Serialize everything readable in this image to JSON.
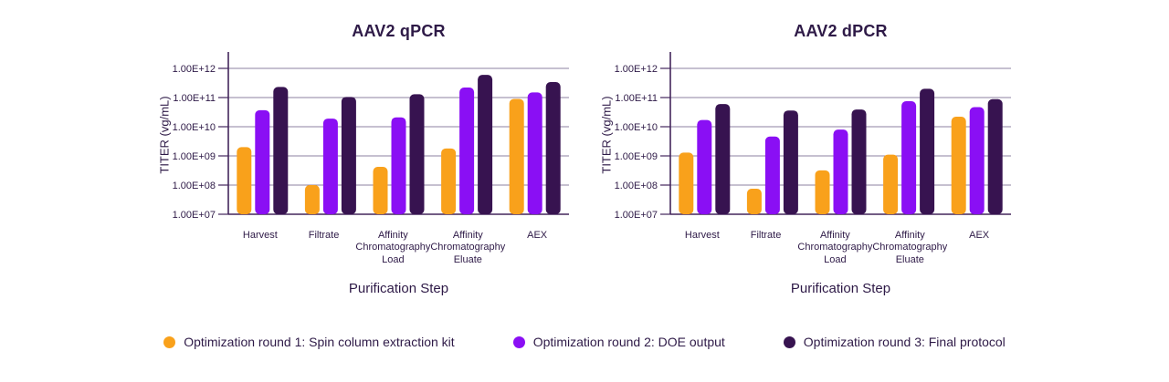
{
  "figure": {
    "x_axis_title": "Purification Step",
    "colors": {
      "text": "#2E1A47",
      "grid": "#8E82A0",
      "axis": "#43265C",
      "round1": "#F9A11B",
      "round2": "#8A0FF4",
      "round3": "#371350"
    }
  },
  "chart_data": [
    {
      "type": "bar",
      "title": "AAV2 qPCR",
      "xlabel": "Purification Step",
      "ylabel": "TITER (vg/mL)",
      "yscale": "log",
      "ylim": [
        10000000.0,
        1000000000000.0
      ],
      "grid": true,
      "ytick_labels": [
        "1.00E+12",
        "1.00E+11",
        "1.00E+10",
        "1.00E+09",
        "1.00E+08",
        "1.00E+07"
      ],
      "categories": [
        "Harvest",
        "Filtrate",
        "Affinity\nChromatography\nLoad",
        "Affinity\nChromatography\nEluate",
        "AEX"
      ],
      "series": [
        {
          "name": "Optimization round 1: Spin column extraction kit",
          "color": "#F9A11B",
          "values": [
            2000000000.0,
            100000000.0,
            420000000.0,
            1800000000.0,
            90000000000.0
          ]
        },
        {
          "name": "Optimization round 2: DOE output",
          "color": "#8A0FF4",
          "values": [
            37000000000.0,
            19000000000.0,
            21000000000.0,
            220000000000.0,
            150000000000.0
          ]
        },
        {
          "name": "Optimization round 3: Final protocol",
          "color": "#371350",
          "values": [
            230000000000.0,
            105000000000.0,
            130000000000.0,
            600000000000.0,
            340000000000.0
          ]
        }
      ]
    },
    {
      "type": "bar",
      "title": "AAV2 dPCR",
      "xlabel": "Purification Step",
      "ylabel": "TITER (vg/mL)",
      "yscale": "log",
      "ylim": [
        10000000.0,
        1000000000000.0
      ],
      "grid": true,
      "ytick_labels": [
        "1.00E+12",
        "1.00E+11",
        "1.00E+10",
        "1.00E+09",
        "1.00E+08",
        "1.00E+07"
      ],
      "categories": [
        "Harvest",
        "Filtrate",
        "Affinity\nChromatography\nLoad",
        "Affinity\nChromatography\nEluate",
        "AEX"
      ],
      "series": [
        {
          "name": "Optimization round 1: Spin column extraction kit",
          "color": "#F9A11B",
          "values": [
            1300000000.0,
            75000000.0,
            320000000.0,
            1100000000.0,
            22000000000.0
          ]
        },
        {
          "name": "Optimization round 2: DOE output",
          "color": "#8A0FF4",
          "values": [
            17000000000.0,
            4600000000.0,
            8000000000.0,
            75000000000.0,
            47000000000.0
          ]
        },
        {
          "name": "Optimization round 3: Final protocol",
          "color": "#371350",
          "values": [
            60000000000.0,
            36000000000.0,
            39000000000.0,
            200000000000.0,
            88000000000.0
          ]
        }
      ]
    }
  ]
}
